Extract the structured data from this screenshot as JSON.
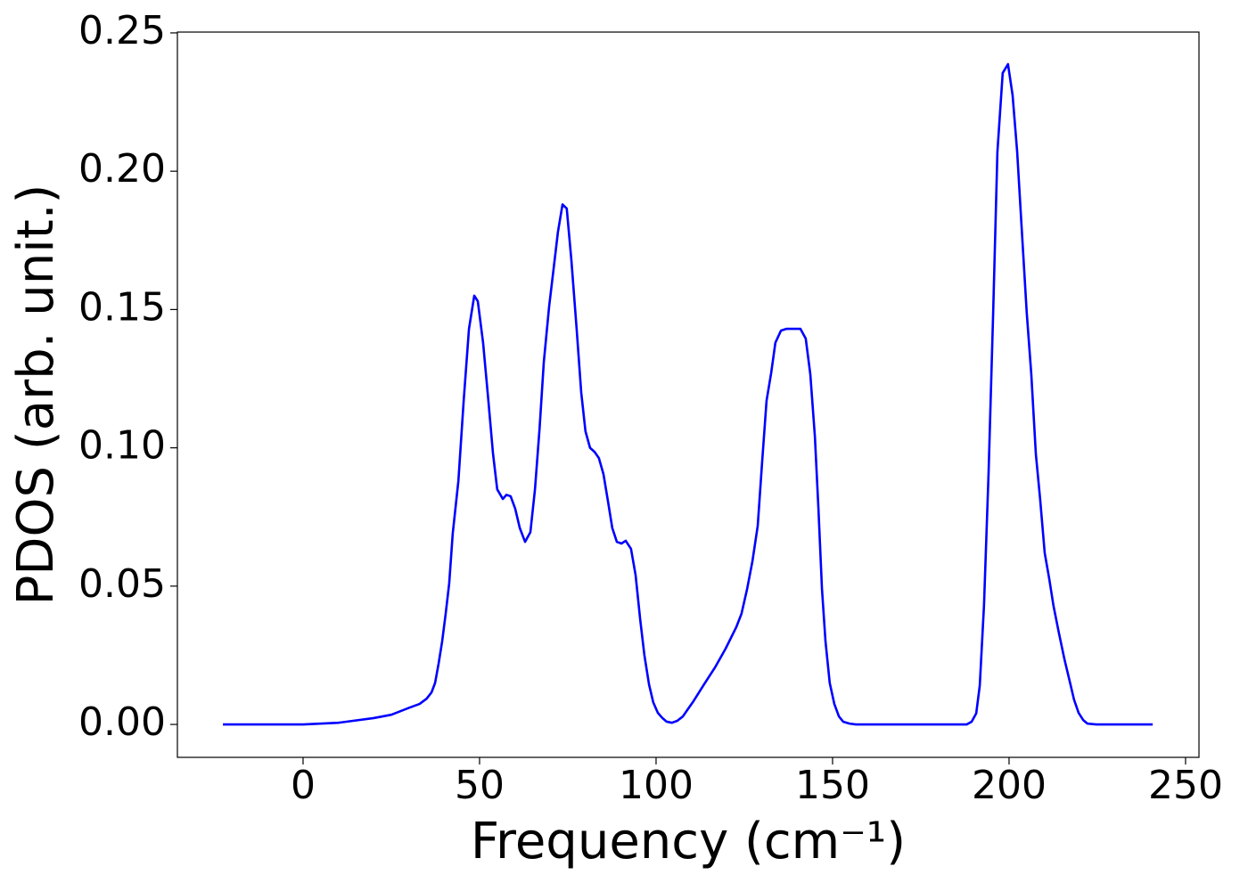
{
  "chart_data": {
    "type": "line",
    "xlabel": "Frequency (cm⁻¹)",
    "ylabel": "PDOS (arb. unit.)",
    "color": "#0000ff",
    "x": [
      -22.7,
      0,
      10,
      20,
      25,
      30,
      33,
      35,
      36.4,
      37.4,
      38.4,
      39.4,
      40.4,
      41.4,
      42.4,
      44,
      45.5,
      47,
      48.5,
      49.5,
      51,
      52.5,
      53.8,
      55,
      56.6,
      57.6,
      58.8,
      60.1,
      61.4,
      62.9,
      64.4,
      65.7,
      67,
      68.2,
      69.7,
      71,
      72.2,
      73.5,
      74.7,
      76,
      77.5,
      78.8,
      80,
      81.3,
      82.6,
      83.8,
      85.1,
      86.4,
      87.6,
      88.9,
      90.2,
      91.4,
      92.9,
      94.2,
      95.5,
      96.7,
      98,
      99.2,
      100.5,
      101.8,
      103,
      104.5,
      106,
      107.6,
      109,
      110.6,
      113.6,
      116.7,
      119.7,
      122.7,
      124.2,
      125.8,
      127.3,
      128.8,
      130,
      131.3,
      132.6,
      133.8,
      135.4,
      136.9,
      140.9,
      142.4,
      143.7,
      145,
      146,
      147,
      148,
      149.2,
      150.5,
      151.8,
      153,
      154.8,
      156.6,
      188,
      189.4,
      190.7,
      191.7,
      192.9,
      194.2,
      195.5,
      196.7,
      198.2,
      199.7,
      201,
      202.3,
      203.5,
      205,
      206.3,
      207.6,
      208.8,
      210.1,
      211.4,
      212.6,
      214.1,
      215.7,
      217.2,
      218.4,
      219.7,
      221,
      222.2,
      224.7,
      240.7
    ],
    "values": [
      0,
      0,
      0.0006,
      0.0023,
      0.0035,
      0.006,
      0.0074,
      0.0093,
      0.0116,
      0.015,
      0.022,
      0.03,
      0.04,
      0.051,
      0.069,
      0.088,
      0.117,
      0.143,
      0.155,
      0.153,
      0.138,
      0.117,
      0.098,
      0.085,
      0.0815,
      0.083,
      0.0825,
      0.078,
      0.071,
      0.066,
      0.0695,
      0.085,
      0.107,
      0.131,
      0.151,
      0.165,
      0.178,
      0.188,
      0.1865,
      0.168,
      0.143,
      0.12,
      0.106,
      0.1,
      0.0985,
      0.0963,
      0.0905,
      0.0805,
      0.071,
      0.066,
      0.0654,
      0.0664,
      0.0635,
      0.054,
      0.038,
      0.025,
      0.0145,
      0.008,
      0.0042,
      0.0023,
      0.001,
      0.0006,
      0.0013,
      0.0029,
      0.0055,
      0.0084,
      0.0145,
      0.0206,
      0.0274,
      0.0351,
      0.04,
      0.049,
      0.059,
      0.0718,
      0.094,
      0.117,
      0.127,
      0.138,
      0.1424,
      0.143,
      0.143,
      0.1395,
      0.1266,
      0.104,
      0.078,
      0.049,
      0.03,
      0.015,
      0.0074,
      0.0029,
      0.001,
      0.0003,
      0,
      0,
      0.001,
      0.004,
      0.014,
      0.043,
      0.091,
      0.149,
      0.207,
      0.2355,
      0.2387,
      0.2275,
      0.207,
      0.181,
      0.149,
      0.1266,
      0.0976,
      0.0815,
      0.062,
      0.0525,
      0.0428,
      0.0332,
      0.0235,
      0.0155,
      0.009,
      0.0042,
      0.0016,
      0.0003,
      0,
      0
    ],
    "xlim": [
      -35.6,
      253.8
    ],
    "ylim": [
      -0.0119,
      0.2503
    ],
    "xticks": [
      0,
      50,
      100,
      150,
      200,
      250
    ],
    "yticks": [
      {
        "value": 0,
        "label": "0.00"
      },
      {
        "value": 0.05,
        "label": "0.05"
      },
      {
        "value": 0.1,
        "label": "0.10"
      },
      {
        "value": 0.15,
        "label": "0.15"
      },
      {
        "value": 0.2,
        "label": "0.20"
      },
      {
        "value": 0.25,
        "label": "0.25"
      }
    ],
    "grid": false
  }
}
